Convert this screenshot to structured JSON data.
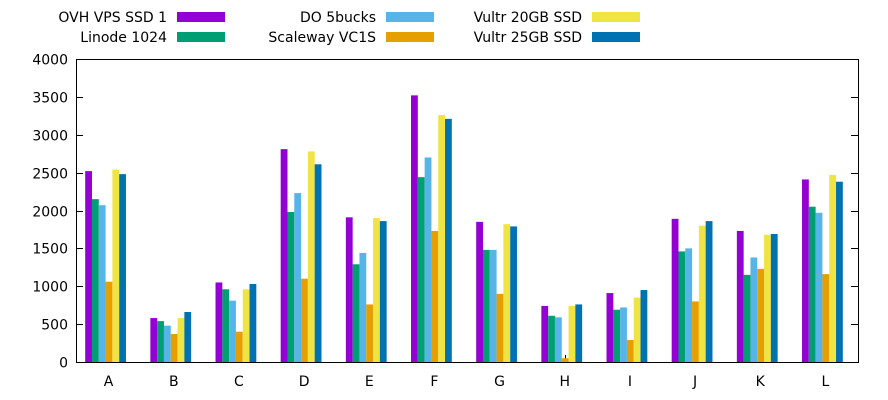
{
  "chart_data": {
    "type": "bar",
    "categories": [
      "A",
      "B",
      "C",
      "D",
      "E",
      "F",
      "G",
      "H",
      "I",
      "J",
      "K",
      "L"
    ],
    "ylim": [
      0,
      4000
    ],
    "yticks": [
      0,
      500,
      1000,
      1500,
      2000,
      2500,
      3000,
      3500,
      4000
    ],
    "grid": false,
    "legend_position": "top",
    "series": [
      {
        "name": "OVH VPS SSD 1",
        "color": "#9400d3",
        "values": [
          2520,
          580,
          1050,
          2810,
          1910,
          3520,
          1850,
          740,
          910,
          1890,
          1730,
          2410
        ]
      },
      {
        "name": "Linode 1024",
        "color": "#009e73",
        "values": [
          2150,
          540,
          960,
          1980,
          1290,
          2440,
          1480,
          610,
          690,
          1460,
          1150,
          2050
        ]
      },
      {
        "name": "DO 5bucks",
        "color": "#56b4e9",
        "values": [
          2070,
          480,
          810,
          2230,
          1440,
          2700,
          1480,
          590,
          720,
          1500,
          1380,
          1970
        ]
      },
      {
        "name": "Scaleway VC1S",
        "color": "#e69f00",
        "values": [
          1060,
          370,
          400,
          1100,
          760,
          1730,
          900,
          50,
          290,
          800,
          1230,
          1160
        ]
      },
      {
        "name": "Vultr 20GB SSD",
        "color": "#f0e442",
        "values": [
          2540,
          580,
          960,
          2780,
          1900,
          3260,
          1820,
          740,
          850,
          1800,
          1680,
          2470
        ]
      },
      {
        "name": "Vultr 25GB SSD",
        "color": "#0072b2",
        "values": [
          2480,
          660,
          1030,
          2610,
          1860,
          3210,
          1790,
          760,
          950,
          1860,
          1690,
          2380
        ]
      }
    ]
  }
}
